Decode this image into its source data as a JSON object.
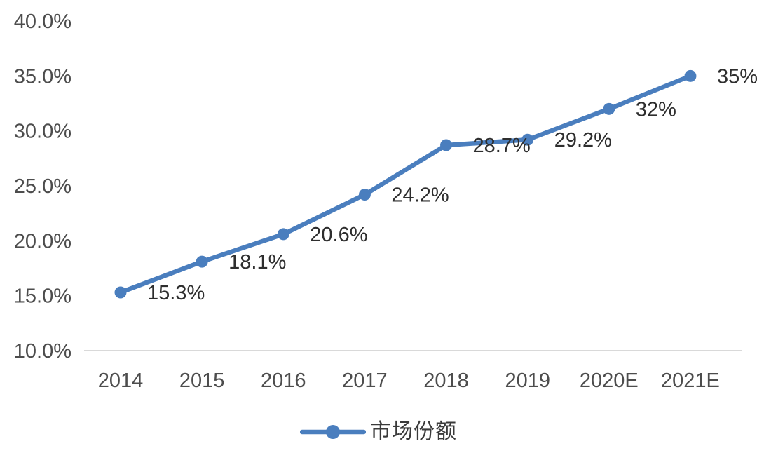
{
  "chart_data": {
    "type": "line",
    "categories": [
      "2014",
      "2015",
      "2016",
      "2017",
      "2018",
      "2019",
      "2020E",
      "2021E"
    ],
    "series": [
      {
        "name": "市场份额",
        "values": [
          15.3,
          18.1,
          20.6,
          24.2,
          28.7,
          29.2,
          32,
          35
        ]
      }
    ],
    "data_labels": [
      "15.3%",
      "18.1%",
      "20.6%",
      "24.2%",
      "28.7%",
      "29.2%",
      "32%",
      "35%"
    ],
    "y_ticks": [
      "40.0%",
      "35.0%",
      "30.0%",
      "25.0%",
      "20.0%",
      "15.0%",
      "10.0%"
    ],
    "ylim": [
      10,
      40
    ],
    "y_step": 5,
    "grid": "off",
    "legend": "市场份额",
    "legend_position": "bottom-center",
    "colors": {
      "line": "#4A7EBE",
      "marker": "#4A7EBE",
      "axis_line": "#D9D9D9",
      "axis_text": "#4D4D4D",
      "data_label_text": "#2E2E2E",
      "legend_text": "#3A3A3A",
      "background": "#FFFFFF"
    }
  }
}
